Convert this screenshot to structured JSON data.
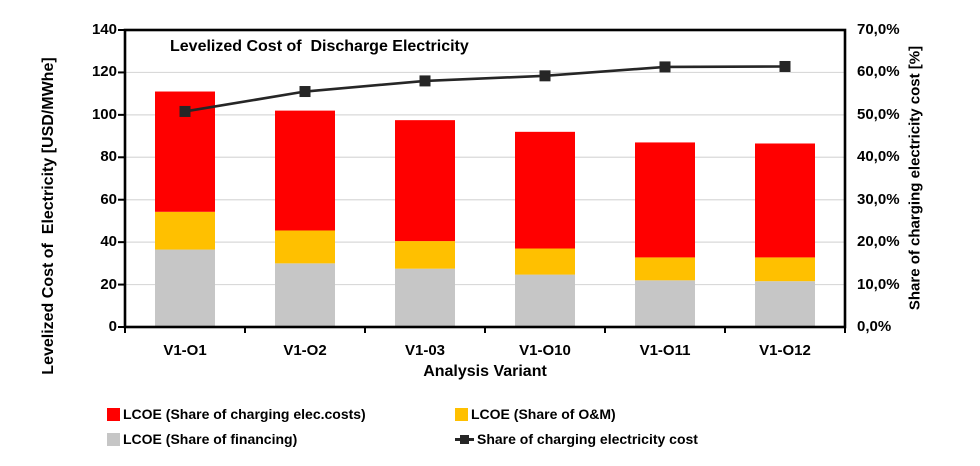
{
  "chart_data": {
    "type": "bar",
    "subtype": "stacked-bars-with-line-on-secondary-axis",
    "title": "Levelized Cost of  Discharge Electricity",
    "categories": [
      "V1-O1",
      "V1-O2",
      "V1-03",
      "V1-O10",
      "V1-O11",
      "V1-O12"
    ],
    "xlabel": "Analysis Variant",
    "left_axis": {
      "label": "Levelized Cost of  Electricity [USD/MWhe]",
      "min": 0,
      "max": 140,
      "step": 20,
      "tick_labels": [
        "140",
        "120",
        "100",
        "80",
        "60",
        "40",
        "20",
        "0"
      ]
    },
    "right_axis": {
      "label": "Share of charging electricity cost [%]",
      "min": 0,
      "max": 70,
      "step": 10,
      "tick_labels": [
        "70,0%",
        "60,0%",
        "50,0%",
        "40,0%",
        "30,0%",
        "20,0%",
        "10,0%",
        "0,0%"
      ]
    },
    "bar_series": [
      {
        "name": "LCOE (Share of financing)",
        "color": "#C6C6C6",
        "values": [
          36.5,
          30.0,
          27.5,
          24.7,
          22.0,
          21.6
        ]
      },
      {
        "name": "LCOE (Share of O&M)",
        "color": "#FFC000",
        "values": [
          17.8,
          15.5,
          13.0,
          12.3,
          10.8,
          11.2
        ]
      },
      {
        "name": "LCOE (Share of charging elec.costs)",
        "color": "#FF0000",
        "values": [
          56.7,
          56.5,
          57.0,
          55.0,
          54.2,
          53.7
        ]
      }
    ],
    "bar_totals": [
      111.0,
      102.0,
      97.5,
      92.0,
      87.0,
      86.5
    ],
    "line_series": {
      "name": "Share of charging electricity cost",
      "axis": "right",
      "color": "#262626",
      "values_percent": [
        50.8,
        55.5,
        58.0,
        59.2,
        61.3,
        61.4
      ]
    },
    "grid": true,
    "legend_position": "bottom"
  },
  "legend": {
    "items": [
      {
        "label": "LCOE (Share of charging elec.costs)",
        "color": "#FF0000",
        "marker": "square"
      },
      {
        "label": "LCOE (Share of O&M)",
        "color": "#FFC000",
        "marker": "square"
      },
      {
        "label": "LCOE (Share of financing)",
        "color": "#C6C6C6",
        "marker": "square"
      },
      {
        "label": "Share of charging electricity cost",
        "color": "#262626",
        "marker": "line-square"
      }
    ]
  },
  "colors": {
    "grid": "#D9D9D9",
    "axis": "#000000",
    "background": "#FFFFFF",
    "bar_red": "#FF0000",
    "bar_yellow": "#FFC000",
    "bar_gray": "#C6C6C6",
    "line": "#262626"
  }
}
